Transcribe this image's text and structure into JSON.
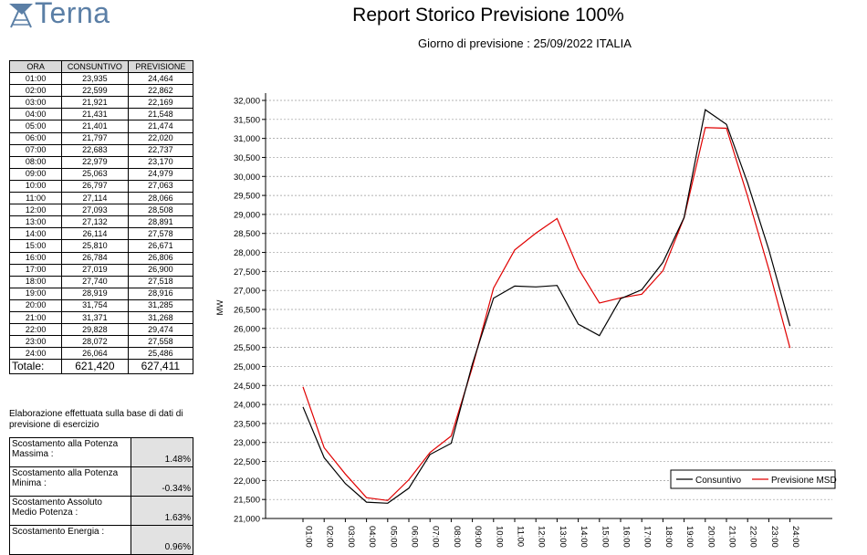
{
  "header": {
    "logo_text": "Terna",
    "title": "Report Storico Previsione 100%",
    "subtitle": "Giorno di previsione : 25/09/2022  ITALIA"
  },
  "table": {
    "headers": [
      "ORA",
      "CONSUNTIVO",
      "PREVISIONE"
    ],
    "rows": [
      [
        "01:00",
        "23,935",
        "24,464"
      ],
      [
        "02:00",
        "22,599",
        "22,862"
      ],
      [
        "03:00",
        "21,921",
        "22,169"
      ],
      [
        "04:00",
        "21,431",
        "21,548"
      ],
      [
        "05:00",
        "21,401",
        "21,474"
      ],
      [
        "06:00",
        "21,797",
        "22,020"
      ],
      [
        "07:00",
        "22,683",
        "22,737"
      ],
      [
        "08:00",
        "22,979",
        "23,170"
      ],
      [
        "09:00",
        "25,063",
        "24,979"
      ],
      [
        "10:00",
        "26,797",
        "27,063"
      ],
      [
        "11:00",
        "27,114",
        "28,066"
      ],
      [
        "12:00",
        "27,093",
        "28,508"
      ],
      [
        "13:00",
        "27,132",
        "28,891"
      ],
      [
        "14:00",
        "26,114",
        "27,578"
      ],
      [
        "15:00",
        "25,810",
        "26,671"
      ],
      [
        "16:00",
        "26,784",
        "26,806"
      ],
      [
        "17:00",
        "27,019",
        "26,900"
      ],
      [
        "18:00",
        "27,740",
        "27,518"
      ],
      [
        "19:00",
        "28,919",
        "28,916"
      ],
      [
        "20:00",
        "31,754",
        "31,285"
      ],
      [
        "21:00",
        "31,371",
        "31,268"
      ],
      [
        "22:00",
        "29,828",
        "29,474"
      ],
      [
        "23:00",
        "28,072",
        "27,558"
      ],
      [
        "24:00",
        "26,064",
        "25,486"
      ]
    ],
    "total_label": "Totale:",
    "total_consuntivo": "621,420",
    "total_previsione": "627,411"
  },
  "note": "Elaborazione effettuata sulla base di dati di previsione di esercizio",
  "metrics": [
    {
      "label": "Scostamento alla Potenza Massima :",
      "value": "1.48%"
    },
    {
      "label": "Scostamento alla Potenza Minima :",
      "value": "-0.34%"
    },
    {
      "label": "Scostamento Assoluto Medio Potenza :",
      "value": "1.63%"
    },
    {
      "label": "Scostamento Energia :",
      "value": "0.96%"
    }
  ],
  "chart_data": {
    "type": "line",
    "x": [
      "01:00",
      "02:00",
      "03:00",
      "04:00",
      "05:00",
      "06:00",
      "07:00",
      "08:00",
      "09:00",
      "10:00",
      "11:00",
      "12:00",
      "13:00",
      "14:00",
      "15:00",
      "16:00",
      "17:00",
      "18:00",
      "19:00",
      "20:00",
      "21:00",
      "22:00",
      "23:00",
      "24:00"
    ],
    "series": [
      {
        "name": "Consuntivo",
        "color": "#000000",
        "values": [
          23935,
          22599,
          21921,
          21431,
          21401,
          21797,
          22683,
          22979,
          25063,
          26797,
          27114,
          27093,
          27132,
          26114,
          25810,
          26784,
          27019,
          27740,
          28919,
          31754,
          31371,
          29828,
          28072,
          26064
        ]
      },
      {
        "name": "Previsione MSD",
        "color": "#e00000",
        "values": [
          24464,
          22862,
          22169,
          21548,
          21474,
          22020,
          22737,
          23170,
          24979,
          27063,
          28066,
          28508,
          28891,
          27578,
          26671,
          26806,
          26900,
          27518,
          28916,
          31285,
          31268,
          29474,
          27558,
          25486
        ]
      }
    ],
    "ylabel": "MW",
    "ylim": [
      21000,
      32000
    ],
    "yticks": [
      "21,000",
      "21,500",
      "22,000",
      "22,500",
      "23,000",
      "23,500",
      "24,000",
      "24,500",
      "25,000",
      "25,500",
      "26,000",
      "26,500",
      "27,000",
      "27,500",
      "28,000",
      "28,500",
      "29,000",
      "29,500",
      "30,000",
      "30,500",
      "31,000",
      "31,500",
      "32,000"
    ],
    "grid": true,
    "legend_position": "bottom-right"
  }
}
